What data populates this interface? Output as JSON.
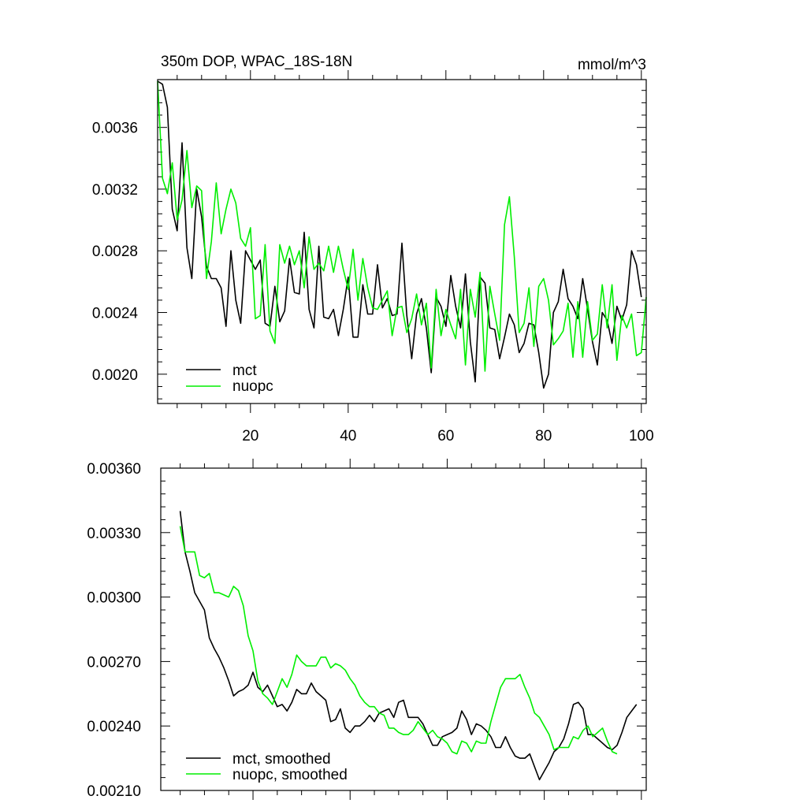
{
  "colors": {
    "mct": "#000000",
    "nuopc": "#00ee00",
    "axis": "#000000"
  },
  "chart_data": [
    {
      "type": "line",
      "title_left": "350m DOP, WPAC_18S-18N",
      "title_right": "mmol/m^3",
      "xlabel": "",
      "ylabel": "",
      "xlim": [
        1,
        101
      ],
      "ylim": [
        0.00181,
        0.00391
      ],
      "x_ticks": [
        20,
        40,
        60,
        80,
        100
      ],
      "x_tick_labels": [
        "20",
        "40",
        "60",
        "80",
        "100"
      ],
      "y_ticks": [
        0.002,
        0.0024,
        0.0028,
        0.0032,
        0.0036
      ],
      "y_tick_labels": [
        "0.0020",
        "0.0024",
        "0.0028",
        "0.0032",
        "0.0036"
      ],
      "legend": {
        "placement": "bottom-left",
        "entries": [
          "mct",
          "nuopc"
        ]
      },
      "series": [
        {
          "name": "mct",
          "color_key": "mct",
          "x_start": 1,
          "values": [
            0.0039,
            0.00388,
            0.00373,
            0.00307,
            0.00293,
            0.0035,
            0.00282,
            0.00262,
            0.0032,
            0.00302,
            0.0027,
            0.00262,
            0.00262,
            0.00256,
            0.00231,
            0.0028,
            0.00248,
            0.00233,
            0.0028,
            0.00274,
            0.00268,
            0.00274,
            0.00233,
            0.00231,
            0.00257,
            0.00234,
            0.00241,
            0.00275,
            0.00253,
            0.00252,
            0.00292,
            0.00242,
            0.0023,
            0.00283,
            0.00237,
            0.00236,
            0.00242,
            0.00225,
            0.00242,
            0.00263,
            0.00224,
            0.00224,
            0.00258,
            0.00239,
            0.00239,
            0.00271,
            0.00243,
            0.00249,
            0.00238,
            0.00239,
            0.00285,
            0.00238,
            0.0021,
            0.00239,
            0.00249,
            0.0023,
            0.00201,
            0.0025,
            0.00244,
            0.00231,
            0.00264,
            0.00244,
            0.0023,
            0.00265,
            0.00221,
            0.00195,
            0.00263,
            0.00259,
            0.0023,
            0.00229,
            0.0021,
            0.00224,
            0.00239,
            0.00232,
            0.00214,
            0.0022,
            0.00233,
            0.00232,
            0.00214,
            0.00191,
            0.002,
            0.0024,
            0.00247,
            0.00268,
            0.00249,
            0.00244,
            0.00236,
            0.00262,
            0.00242,
            0.00221,
            0.00206,
            0.0024,
            0.00235,
            0.0022,
            0.00244,
            0.00235,
            0.00245,
            0.0028,
            0.00271,
            0.0025
          ]
        },
        {
          "name": "nuopc",
          "color_key": "nuopc",
          "x_start": 1,
          "values": [
            0.0039,
            0.00327,
            0.00317,
            0.00337,
            0.003,
            0.00313,
            0.00345,
            0.00308,
            0.00322,
            0.00319,
            0.00262,
            0.00286,
            0.00324,
            0.00291,
            0.00307,
            0.0032,
            0.00311,
            0.00288,
            0.00283,
            0.00295,
            0.00236,
            0.00238,
            0.00284,
            0.00228,
            0.0022,
            0.00284,
            0.00272,
            0.00283,
            0.00271,
            0.0028,
            0.00256,
            0.00289,
            0.00268,
            0.00272,
            0.00267,
            0.00283,
            0.00266,
            0.00283,
            0.00268,
            0.00255,
            0.00281,
            0.00248,
            0.00275,
            0.00256,
            0.00243,
            0.00242,
            0.00248,
            0.00254,
            0.00225,
            0.00243,
            0.00244,
            0.00227,
            0.00236,
            0.00252,
            0.00232,
            0.00246,
            0.00204,
            0.00255,
            0.00225,
            0.00242,
            0.00232,
            0.00223,
            0.00255,
            0.00206,
            0.00255,
            0.00237,
            0.00266,
            0.00202,
            0.00257,
            0.00239,
            0.00222,
            0.00297,
            0.00315,
            0.00276,
            0.00227,
            0.00233,
            0.00256,
            0.00218,
            0.00257,
            0.00262,
            0.00248,
            0.00219,
            0.00223,
            0.00228,
            0.00246,
            0.00211,
            0.00247,
            0.00211,
            0.00247,
            0.00222,
            0.00226,
            0.00258,
            0.0023,
            0.00258,
            0.00209,
            0.00238,
            0.0023,
            0.00239,
            0.00212,
            0.00214,
            0.0025
          ]
        }
      ]
    },
    {
      "type": "line",
      "title_left": "",
      "title_right": "",
      "xlabel": "",
      "ylabel": "",
      "xlim": [
        1,
        101
      ],
      "ylim": [
        0.0021,
        0.0036
      ],
      "x_ticks": [
        20,
        40,
        60,
        80,
        100
      ],
      "x_tick_labels": [],
      "y_ticks": [
        0.0021,
        0.0024,
        0.0027,
        0.003,
        0.0033,
        0.0036
      ],
      "y_tick_labels": [
        "0.00210",
        "0.00240",
        "0.00270",
        "0.00300",
        "0.00330",
        "0.00360"
      ],
      "legend": {
        "placement": "bottom-left",
        "entries": [
          "mct, smoothed",
          "nuopc, smoothed"
        ]
      },
      "series": [
        {
          "name": "mct, smoothed",
          "color_key": "mct",
          "x_start": 5,
          "values": [
            0.0034,
            0.00321,
            0.00312,
            0.00302,
            0.00298,
            0.00294,
            0.00281,
            0.00276,
            0.00272,
            0.00267,
            0.00261,
            0.00254,
            0.00256,
            0.00257,
            0.00259,
            0.00265,
            0.00258,
            0.00256,
            0.00259,
            0.00254,
            0.00249,
            0.0025,
            0.00247,
            0.00251,
            0.00257,
            0.00255,
            0.00255,
            0.0026,
            0.00256,
            0.00254,
            0.00252,
            0.00242,
            0.00243,
            0.00248,
            0.00239,
            0.00237,
            0.0024,
            0.0024,
            0.00242,
            0.00245,
            0.00242,
            0.00246,
            0.00247,
            0.00248,
            0.00244,
            0.00251,
            0.00252,
            0.00244,
            0.00244,
            0.00244,
            0.00241,
            0.00236,
            0.00231,
            0.00231,
            0.00235,
            0.00236,
            0.00237,
            0.00239,
            0.00247,
            0.00243,
            0.00236,
            0.00241,
            0.0024,
            0.00238,
            0.00235,
            0.0023,
            0.0023,
            0.00235,
            0.0023,
            0.00226,
            0.00225,
            0.00225,
            0.00227,
            0.00221,
            0.00215,
            0.00219,
            0.00223,
            0.00228,
            0.0023,
            0.00234,
            0.00241,
            0.0025,
            0.00251,
            0.00248,
            0.00236,
            0.00236,
            0.00234,
            0.00232,
            0.0023,
            0.00229,
            0.00231,
            0.00237,
            0.00244,
            0.00247,
            0.0025
          ]
        },
        {
          "name": "nuopc, smoothed",
          "color_key": "nuopc",
          "x_start": 5,
          "values": [
            0.00333,
            0.00321,
            0.00321,
            0.00321,
            0.0031,
            0.00309,
            0.00311,
            0.00302,
            0.00302,
            0.00301,
            0.003,
            0.00305,
            0.00303,
            0.00296,
            0.00282,
            0.00275,
            0.00261,
            0.00255,
            0.00253,
            0.0025,
            0.00256,
            0.00262,
            0.00258,
            0.00264,
            0.00273,
            0.0027,
            0.00268,
            0.00268,
            0.00268,
            0.00272,
            0.00272,
            0.00267,
            0.00269,
            0.00268,
            0.00266,
            0.00262,
            0.00259,
            0.00254,
            0.00251,
            0.00249,
            0.00249,
            0.00246,
            0.00245,
            0.00239,
            0.00239,
            0.00237,
            0.00236,
            0.00236,
            0.00238,
            0.00242,
            0.00239,
            0.00236,
            0.00238,
            0.00235,
            0.00234,
            0.00232,
            0.00228,
            0.00227,
            0.00233,
            0.00232,
            0.00228,
            0.00233,
            0.00232,
            0.00232,
            0.00242,
            0.0025,
            0.00258,
            0.00262,
            0.00262,
            0.00262,
            0.00264,
            0.00258,
            0.00253,
            0.00246,
            0.00244,
            0.0024,
            0.00236,
            0.00229,
            0.0023,
            0.0023,
            0.0023,
            0.00235,
            0.00234,
            0.00238,
            0.0024,
            0.00235,
            0.00237,
            0.00239,
            0.00233,
            0.00228,
            0.00227
          ]
        }
      ]
    }
  ]
}
